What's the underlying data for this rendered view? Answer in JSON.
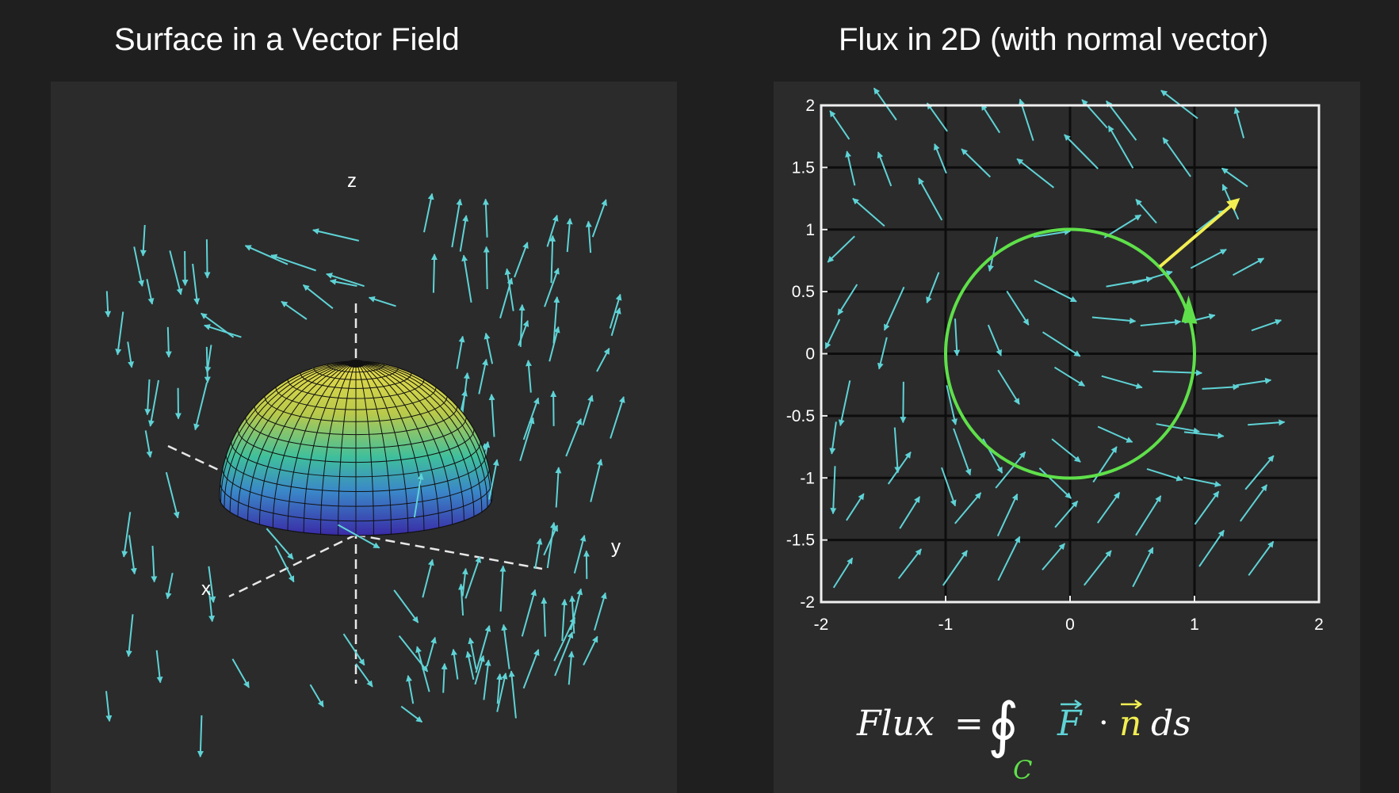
{
  "titles": {
    "left": "Surface in a Vector Field",
    "right": "Flux in 2D (with normal vector)"
  },
  "left_panel": {
    "axis_labels": {
      "x": "x",
      "y": "y",
      "z": "z"
    },
    "colors": {
      "arrow": "#5fd3d6",
      "surface_top": "#e6d84a",
      "surface_mid": "#3bbf9a",
      "surface_bottom": "#3a2fa8"
    }
  },
  "right_panel": {
    "xlim": [
      -2,
      2
    ],
    "ylim": [
      -2,
      2
    ],
    "x_ticks": [
      "-2",
      "-1",
      "0",
      "1",
      "2"
    ],
    "y_ticks": [
      "2",
      "1.5",
      "1",
      "0.5",
      "0",
      "-0.5",
      "-1",
      "-1.5",
      "-2"
    ],
    "curve": {
      "type": "circle",
      "center": [
        0,
        0
      ],
      "radius": 1,
      "color": "#5fe04a"
    },
    "normal_vector": {
      "from": [
        0.72,
        0.7
      ],
      "to": [
        1.35,
        1.24
      ],
      "color": "#f2ee52"
    },
    "arrow_color": "#5fd3d6",
    "formula": {
      "lhs": "Flux",
      "equals": "=",
      "integral": "∮",
      "subscript": "C",
      "field": "F",
      "dot": "·",
      "normal": "n",
      "differential": "ds"
    }
  }
}
